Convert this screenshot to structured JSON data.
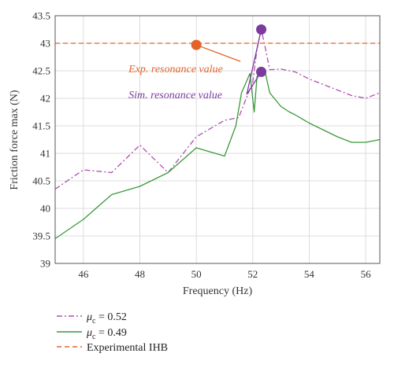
{
  "chart_data": {
    "type": "line",
    "xlabel": "Frequency (Hz)",
    "ylabel": "Friction force max (N)",
    "xlim": [
      45,
      56.5
    ],
    "ylim": [
      39,
      43.5
    ],
    "xticks": [
      46,
      48,
      50,
      52,
      54,
      56
    ],
    "yticks": [
      39,
      39.5,
      40,
      40.5,
      41,
      41.5,
      42,
      42.5,
      43,
      43.5
    ],
    "xtick_labels": [
      "46",
      "48",
      "50",
      "52",
      "54",
      "56"
    ],
    "ytick_labels": [
      "39",
      "39.5",
      "40",
      "40.5",
      "41",
      "41.5",
      "42",
      "42.5",
      "43",
      "43.5"
    ],
    "grid": true,
    "legend_position": "below",
    "series": [
      {
        "name": "μc = 0.52",
        "label_symbol": "μ",
        "label_sub": "c",
        "label_rest": " = 0.52",
        "color": "#b04fb0",
        "style": "dashdot",
        "x": [
          45,
          46,
          47,
          48,
          49,
          50,
          51,
          51.5,
          52,
          52.15,
          52.3,
          52.45,
          52.6,
          53,
          53.5,
          54,
          55,
          55.5,
          56,
          56.5
        ],
        "y": [
          40.35,
          40.7,
          40.65,
          41.15,
          40.65,
          41.3,
          41.6,
          41.65,
          42.3,
          42.9,
          43.25,
          42.9,
          42.52,
          42.53,
          42.48,
          42.35,
          42.15,
          42.05,
          42.0,
          42.1
        ]
      },
      {
        "name": "μc = 0.49",
        "label_symbol": "μ",
        "label_sub": "c",
        "label_rest": " = 0.49",
        "color": "#3a9a3a",
        "style": "solid",
        "x": [
          45,
          46,
          47,
          48,
          49,
          50,
          51,
          51.4,
          51.6,
          51.9,
          52.05,
          52.15,
          52.3,
          52.45,
          52.6,
          53,
          53.3,
          53.5,
          54,
          55,
          55.5,
          56,
          56.5
        ],
        "y": [
          39.45,
          39.8,
          40.25,
          40.4,
          40.65,
          41.1,
          40.95,
          41.5,
          42.1,
          42.45,
          41.75,
          42.4,
          42.5,
          42.45,
          42.1,
          41.85,
          41.75,
          41.7,
          41.55,
          41.3,
          41.2,
          41.2,
          41.25
        ]
      },
      {
        "name": "Experimental IHB",
        "color": "#e3632a",
        "style": "dashed",
        "x": [
          45,
          56.5
        ],
        "y": [
          43,
          43
        ]
      }
    ],
    "points": [
      {
        "name": "exp-resonance-point",
        "x": 50,
        "y": 42.97,
        "color": "#e3632a"
      },
      {
        "name": "sim-resonance-point-052",
        "x": 52.3,
        "y": 43.25,
        "color": "#7b3a9e"
      },
      {
        "name": "sim-resonance-point-049",
        "x": 52.3,
        "y": 42.48,
        "color": "#7b3a9e"
      }
    ],
    "annotations": [
      {
        "name": "exp-resonance-label",
        "text": "Exp. resonance value",
        "color": "#e3632a",
        "x": 47.6,
        "y": 42.47,
        "points_to": "exp-resonance-point"
      },
      {
        "name": "sim-resonance-label",
        "text": "Sim. resonance value",
        "color": "#7b3a9e",
        "x": 47.6,
        "y": 42.0,
        "points_to": [
          "sim-resonance-point-052",
          "sim-resonance-point-049"
        ]
      }
    ]
  }
}
